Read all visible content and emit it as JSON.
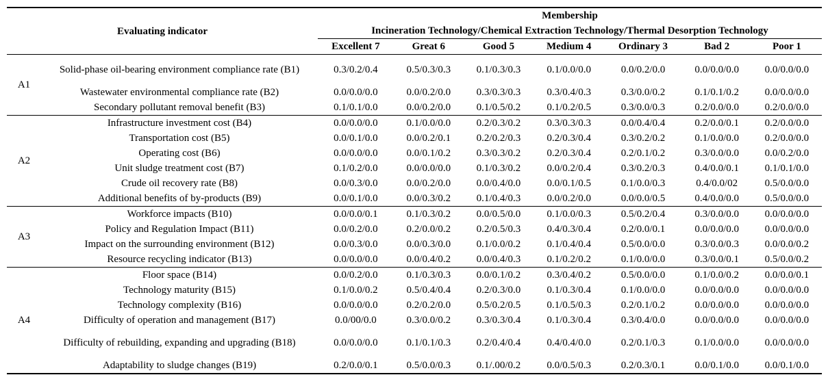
{
  "table": {
    "header": {
      "indicator": "Evaluating indicator",
      "membership": "Membership",
      "technologies": "Incineration Technology/Chemical Extraction Technology/Thermal Desorption Technology",
      "grades": [
        "Excellent 7",
        "Great 6",
        "Good 5",
        "Medium 4",
        "Ordinary 3",
        "Bad 2",
        "Poor 1"
      ]
    },
    "groups": [
      {
        "label": "A1",
        "rows": [
          {
            "indicator": "Solid-phase oil-bearing environment compliance rate (B1)",
            "cells": [
              "0.3/0.2/0.4",
              "0.5/0.3/0.3",
              "0.1/0.3/0.3",
              "0.1/0.0/0.0",
              "0.0/0.2/0.0",
              "0.0/0.0/0.0",
              "0.0/0.0/0.0"
            ]
          },
          {
            "indicator": "Wastewater environmental compliance rate (B2)",
            "cells": [
              "0.0/0.0/0.0",
              "0.0/0.2/0.0",
              "0.3/0.3/0.3",
              "0.3/0.4/0.3",
              "0.3/0.0/0.2",
              "0.1/0.1/0.2",
              "0.0/0.0/0.0"
            ]
          },
          {
            "indicator": "Secondary pollutant removal benefit (B3)",
            "cells": [
              "0.1/0.1/0.0",
              "0.0/0.2/0.0",
              "0.1/0.5/0.2",
              "0.1/0.2/0.5",
              "0.3/0.0/0.3",
              "0.2/0.0/0.0",
              "0.2/0.0/0.0"
            ]
          }
        ]
      },
      {
        "label": "A2",
        "rows": [
          {
            "indicator": "Infrastructure investment cost (B4)",
            "cells": [
              "0.0/0.0/0.0",
              "0.1/0.0/0.0",
              "0.2/0.3/0.2",
              "0.3/0.3/0.3",
              "0.0/0.4/0.4",
              "0.2/0.0/0.1",
              "0.2/0.0/0.0"
            ]
          },
          {
            "indicator": "Transportation cost (B5)",
            "cells": [
              "0.0/0.1/0.0",
              "0.0/0.2/0.1",
              "0.2/0.2/0.3",
              "0.2/0.3/0.4",
              "0.3/0.2/0.2",
              "0.1/0.0/0.0",
              "0.2/0.0/0.0"
            ]
          },
          {
            "indicator": "Operating cost (B6)",
            "cells": [
              "0.0/0.0/0.0",
              "0.0/0.1/0.2",
              "0.3/0.3/0.2",
              "0.2/0.3/0.4",
              "0.2/0.1/0.2",
              "0.3/0.0/0.0",
              "0.0/0.2/0.0"
            ]
          },
          {
            "indicator": "Unit sludge treatment cost (B7)",
            "cells": [
              "0.1/0.2/0.0",
              "0.0/0.0/0.0",
              "0.1/0.3/0.2",
              "0.0/0.2/0.4",
              "0.3/0.2/0.3",
              "0.4/0.0/0.1",
              "0.1/0.1/0.0"
            ]
          },
          {
            "indicator": "Crude oil recovery rate (B8)",
            "cells": [
              "0.0/0.3/0.0",
              "0.0/0.2/0.0",
              "0.0/0.4/0.0",
              "0.0/0.1/0.5",
              "0.1/0.0/0.3",
              "0.4/0.0/02",
              "0.5/0.0/0.0"
            ]
          },
          {
            "indicator": "Additional benefits of by-products (B9)",
            "cells": [
              "0.0/0.1/0.0",
              "0.0/0.3/0.2",
              "0.1/0.4/0.3",
              "0.0/0.2/0.0",
              "0.0/0.0/0.5",
              "0.4/0.0/0.0",
              "0.5/0.0/0.0"
            ]
          }
        ]
      },
      {
        "label": "A3",
        "rows": [
          {
            "indicator": "Workforce impacts (B10)",
            "cells": [
              "0.0/0.0/0.1",
              "0.1/0.3/0.2",
              "0.0/0.5/0.0",
              "0.1/0.0/0.3",
              "0.5/0.2/0.4",
              "0.3/0.0/0.0",
              "0.0/0.0/0.0"
            ]
          },
          {
            "indicator": "Policy and Regulation Impact (B11)",
            "cells": [
              "0.0/0.2/0.0",
              "0.2/0.0/0.2",
              "0.2/0.5/0.3",
              "0.4/0.3/0.4",
              "0.2/0.0/0.1",
              "0.0/0.0/0.0",
              "0.0/0.0/0.0"
            ]
          },
          {
            "indicator": "Impact on the surrounding environment (B12)",
            "cells": [
              "0.0/0.3/0.0",
              "0.0/0.3/0.0",
              "0.1/0.0/0.2",
              "0.1/0.4/0.4",
              "0.5/0.0/0.0",
              "0.3/0.0/0.3",
              "0.0/0.0/0.2"
            ]
          },
          {
            "indicator": "Resource recycling indicator (B13)",
            "cells": [
              "0.0/0.0/0.0",
              "0.0/0.4/0.2",
              "0.0/0.4/0.3",
              "0.1/0.2/0.2",
              "0.1/0.0/0.0",
              "0.3/0.0/0.1",
              "0.5/0.0/0.2"
            ]
          }
        ]
      },
      {
        "label": "A4",
        "rows": [
          {
            "indicator": "Floor space (B14)",
            "cells": [
              "0.0/0.2/0.0",
              "0.1/0.3/0.3",
              "0.0/0.1/0.2",
              "0.3/0.4/0.2",
              "0.5/0.0/0.0",
              "0.1/0.0/0.2",
              "0.0/0.0/0.1"
            ]
          },
          {
            "indicator": "Technology maturity (B15)",
            "cells": [
              "0.1/0.0/0.2",
              "0.5/0.4/0.4",
              "0.2/0.3/0.0",
              "0.1/0.3/0.4",
              "0.1/0.0/0.0",
              "0.0/0.0/0.0",
              "0.0/0.0/0.0"
            ]
          },
          {
            "indicator": "Technology complexity (B16)",
            "cells": [
              "0.0/0.0/0.0",
              "0.2/0.2/0.0",
              "0.5/0.2/0.5",
              "0.1/0.5/0.3",
              "0.2/0.1/0.2",
              "0.0/0.0/0.0",
              "0.0/0.0/0.0"
            ]
          },
          {
            "indicator": "Difficulty of operation and management (B17)",
            "cells": [
              "0.0/00/0.0",
              "0.3/0.0/0.2",
              "0.3/0.3/0.4",
              "0.1/0.3/0.4",
              "0.3/0.4/0.0",
              "0.0/0.0/0.0",
              "0.0/0.0/0.0"
            ]
          },
          {
            "indicator": "Difficulty of rebuilding, expanding and upgrading (B18)",
            "cells": [
              "0.0/0.0/0.0",
              "0.1/0.1/0.3",
              "0.2/0.4/0.4",
              "0.4/0.4/0.0",
              "0.2/0.1/0.3",
              "0.1/0.0/0.0",
              "0.0/0.0/0.0"
            ]
          },
          {
            "indicator": "Adaptability to sludge changes (B19)",
            "cells": [
              "0.2/0.0/0.1",
              "0.5/0.0/0.3",
              "0.1/.00/0.2",
              "0.0/0.5/0.3",
              "0.2/0.3/0.1",
              "0.0/0.1/0.0",
              "0.0/0.1/0.0"
            ]
          }
        ]
      }
    ]
  }
}
